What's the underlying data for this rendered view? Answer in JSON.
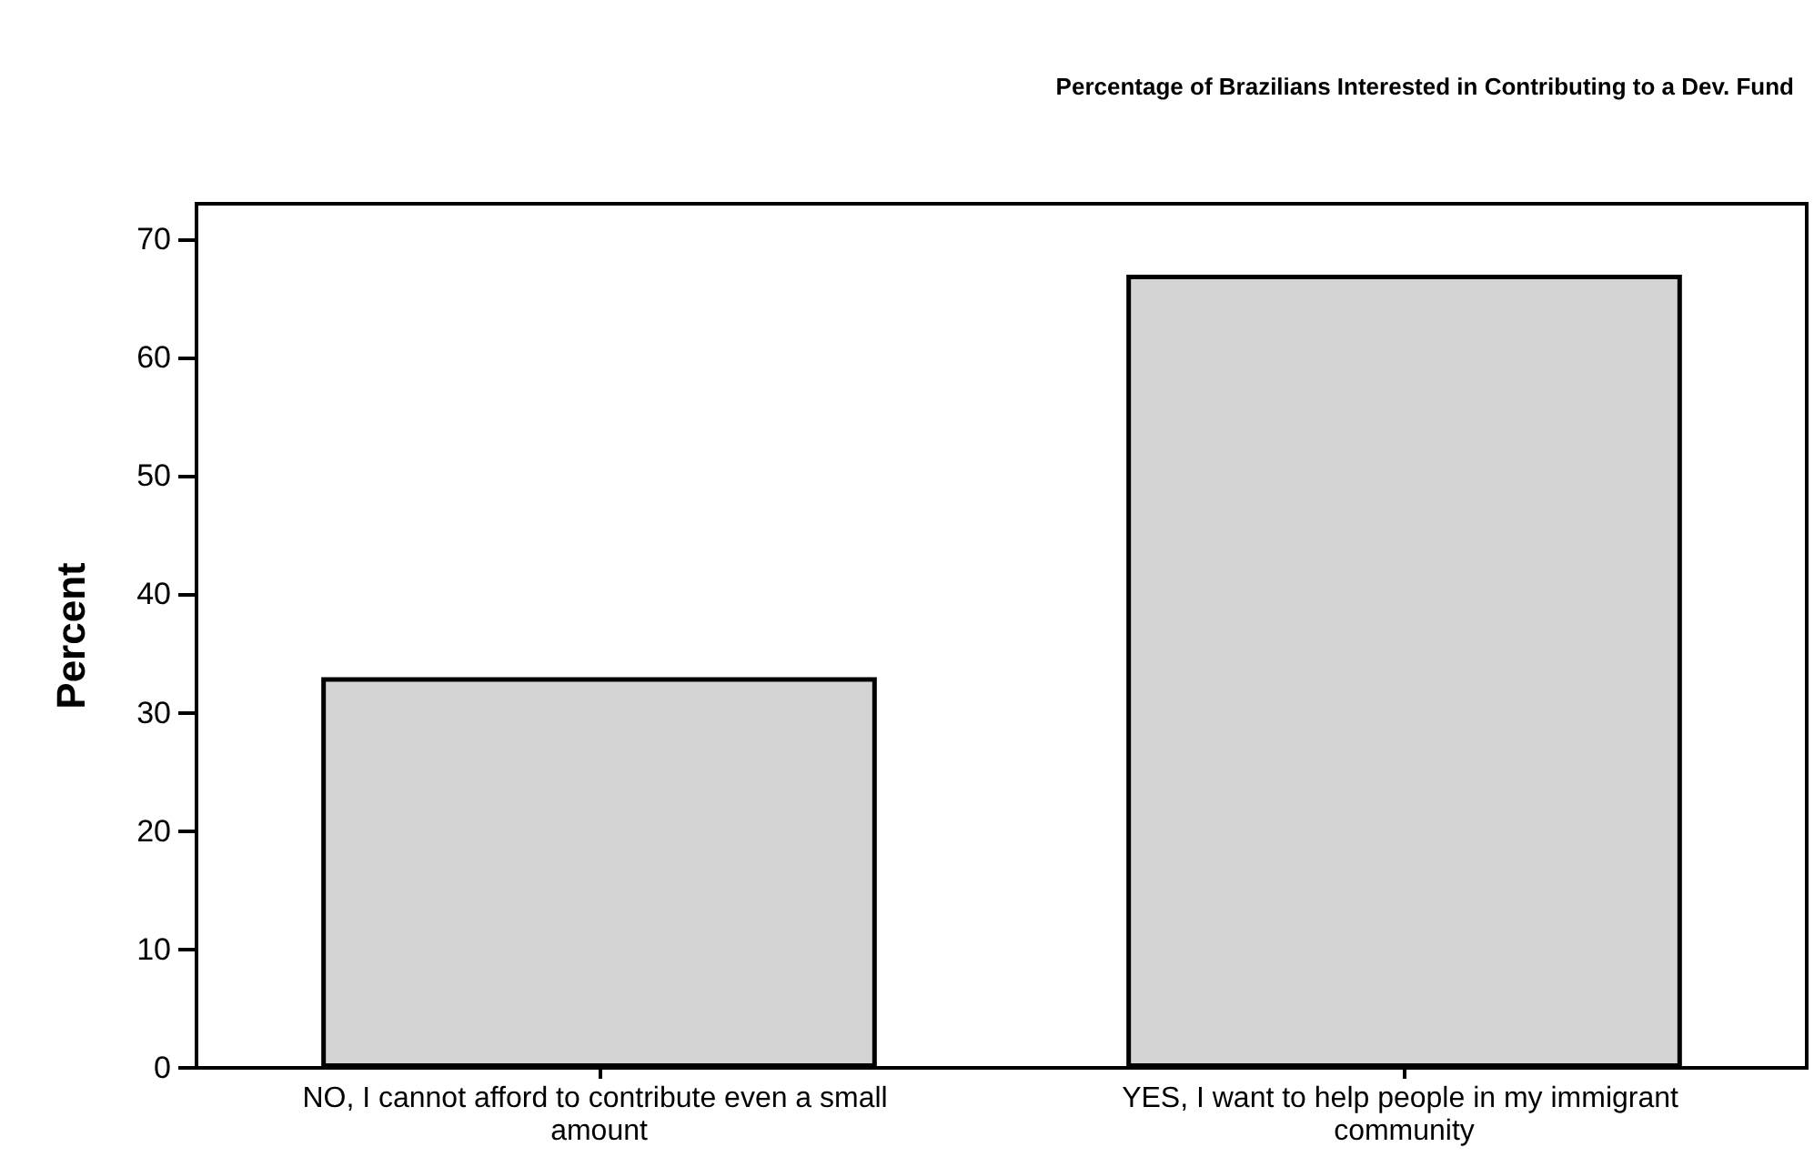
{
  "chart_data": {
    "type": "bar",
    "title": "Percentage of Brazilians Interested in Contributing to a Dev. Fund",
    "ylabel": "Percent",
    "categories": [
      "NO, I cannot afford to contribute even a small amount",
      "YES, I want to help people in my immigrant community"
    ],
    "values": [
      33,
      67
    ],
    "color": "#d4d4d4",
    "ylim": [
      0,
      73
    ],
    "yticks": [
      0,
      10,
      20,
      30,
      40,
      50,
      60,
      70
    ],
    "grid": false
  }
}
